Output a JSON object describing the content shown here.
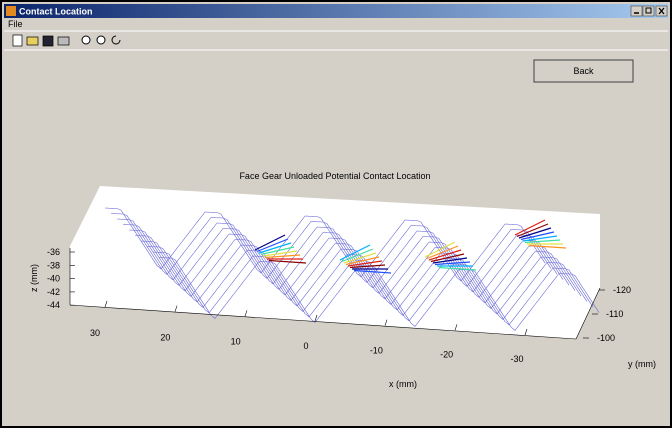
{
  "window": {
    "title": "Contact Location",
    "menu": [
      "File"
    ]
  },
  "button": "Back",
  "plot": {
    "title": "Face Gear Unloaded Potential Contact Location",
    "xlabel": "x (mm)",
    "ylabel": "y (mm)",
    "zlabel": "z (mm)",
    "xticks": [
      30,
      20,
      10,
      0,
      -10,
      -20,
      -30
    ],
    "yticks": [
      -120,
      -110,
      -100
    ],
    "zticks": [
      -36,
      -38,
      -40,
      -42,
      -44
    ]
  }
}
